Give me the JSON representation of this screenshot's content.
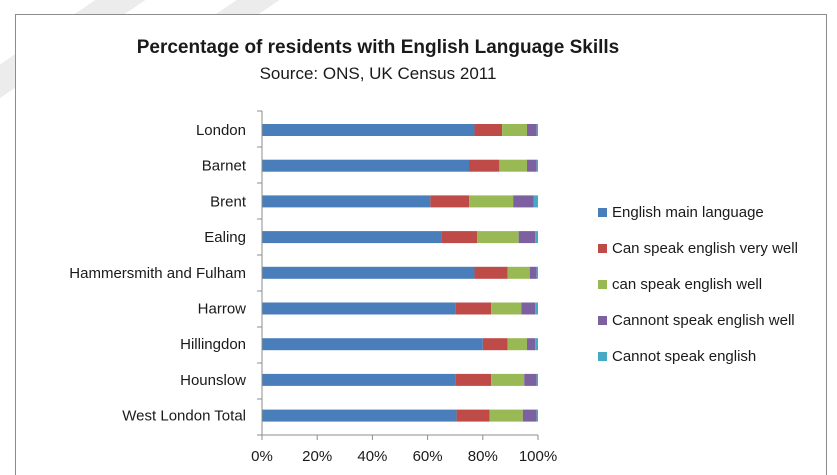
{
  "chart_data": {
    "type": "bar",
    "orientation": "horizontal",
    "stacked": true,
    "percent_stacked": true,
    "title": "Percentage of residents with English Language Skills",
    "subtitle": "Source: ONS, UK Census 2011",
    "categories": [
      "London",
      "Barnet",
      "Brent",
      "Ealing",
      "Hammersmith and Fulham",
      "Harrow",
      "Hillingdon",
      "Hounslow",
      "West London Total"
    ],
    "series": [
      {
        "name": "English main language",
        "color": "#4a7ebb",
        "values": [
          77,
          75,
          61,
          65,
          77,
          70,
          80,
          70,
          70.5
        ]
      },
      {
        "name": "Can speak english very well",
        "color": "#be4b48",
        "values": [
          10,
          11,
          14,
          13,
          12,
          13,
          9,
          13,
          12
        ]
      },
      {
        "name": "can speak english well",
        "color": "#98b954",
        "values": [
          9,
          10,
          16,
          15,
          8,
          11,
          7,
          12,
          12
        ]
      },
      {
        "name": "Cannont speak english well",
        "color": "#7d60a0",
        "values": [
          3.5,
          3.5,
          7.5,
          6,
          2.5,
          5,
          3,
          4.5,
          5
        ]
      },
      {
        "name": "Cannot speak english",
        "color": "#46aac5",
        "values": [
          0.5,
          0.5,
          1.5,
          1,
          0.5,
          1,
          1,
          0.5,
          0.5
        ]
      }
    ],
    "xlim": [
      0,
      100
    ],
    "x_ticks": [
      "0%",
      "20%",
      "40%",
      "60%",
      "80%",
      "100%"
    ],
    "grid": false,
    "legend_position": "right"
  }
}
